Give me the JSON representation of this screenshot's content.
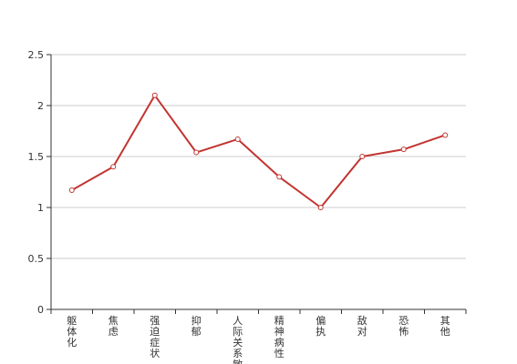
{
  "chart_data": {
    "type": "line",
    "title": "",
    "xlabel": "",
    "ylabel": "",
    "categories": [
      "躯体化",
      "焦虑",
      "强迫症状",
      "抑郁",
      "人际关系敏感",
      "精神病性",
      "偏执",
      "敌对",
      "恐怖",
      "其他"
    ],
    "series": [
      {
        "values": [
          1.17,
          1.4,
          2.1,
          1.54,
          1.67,
          1.3,
          1.0,
          1.5,
          1.57,
          1.71
        ]
      }
    ],
    "ylim": [
      0,
      2.5
    ],
    "yticks": [
      0,
      0.5,
      1,
      1.5,
      2,
      2.5
    ],
    "grid": true,
    "legend": "none",
    "colors": {
      "line": "#c23531",
      "grid": "#cccccc",
      "axis": "#333333",
      "point_fill": "#ffffff"
    }
  }
}
